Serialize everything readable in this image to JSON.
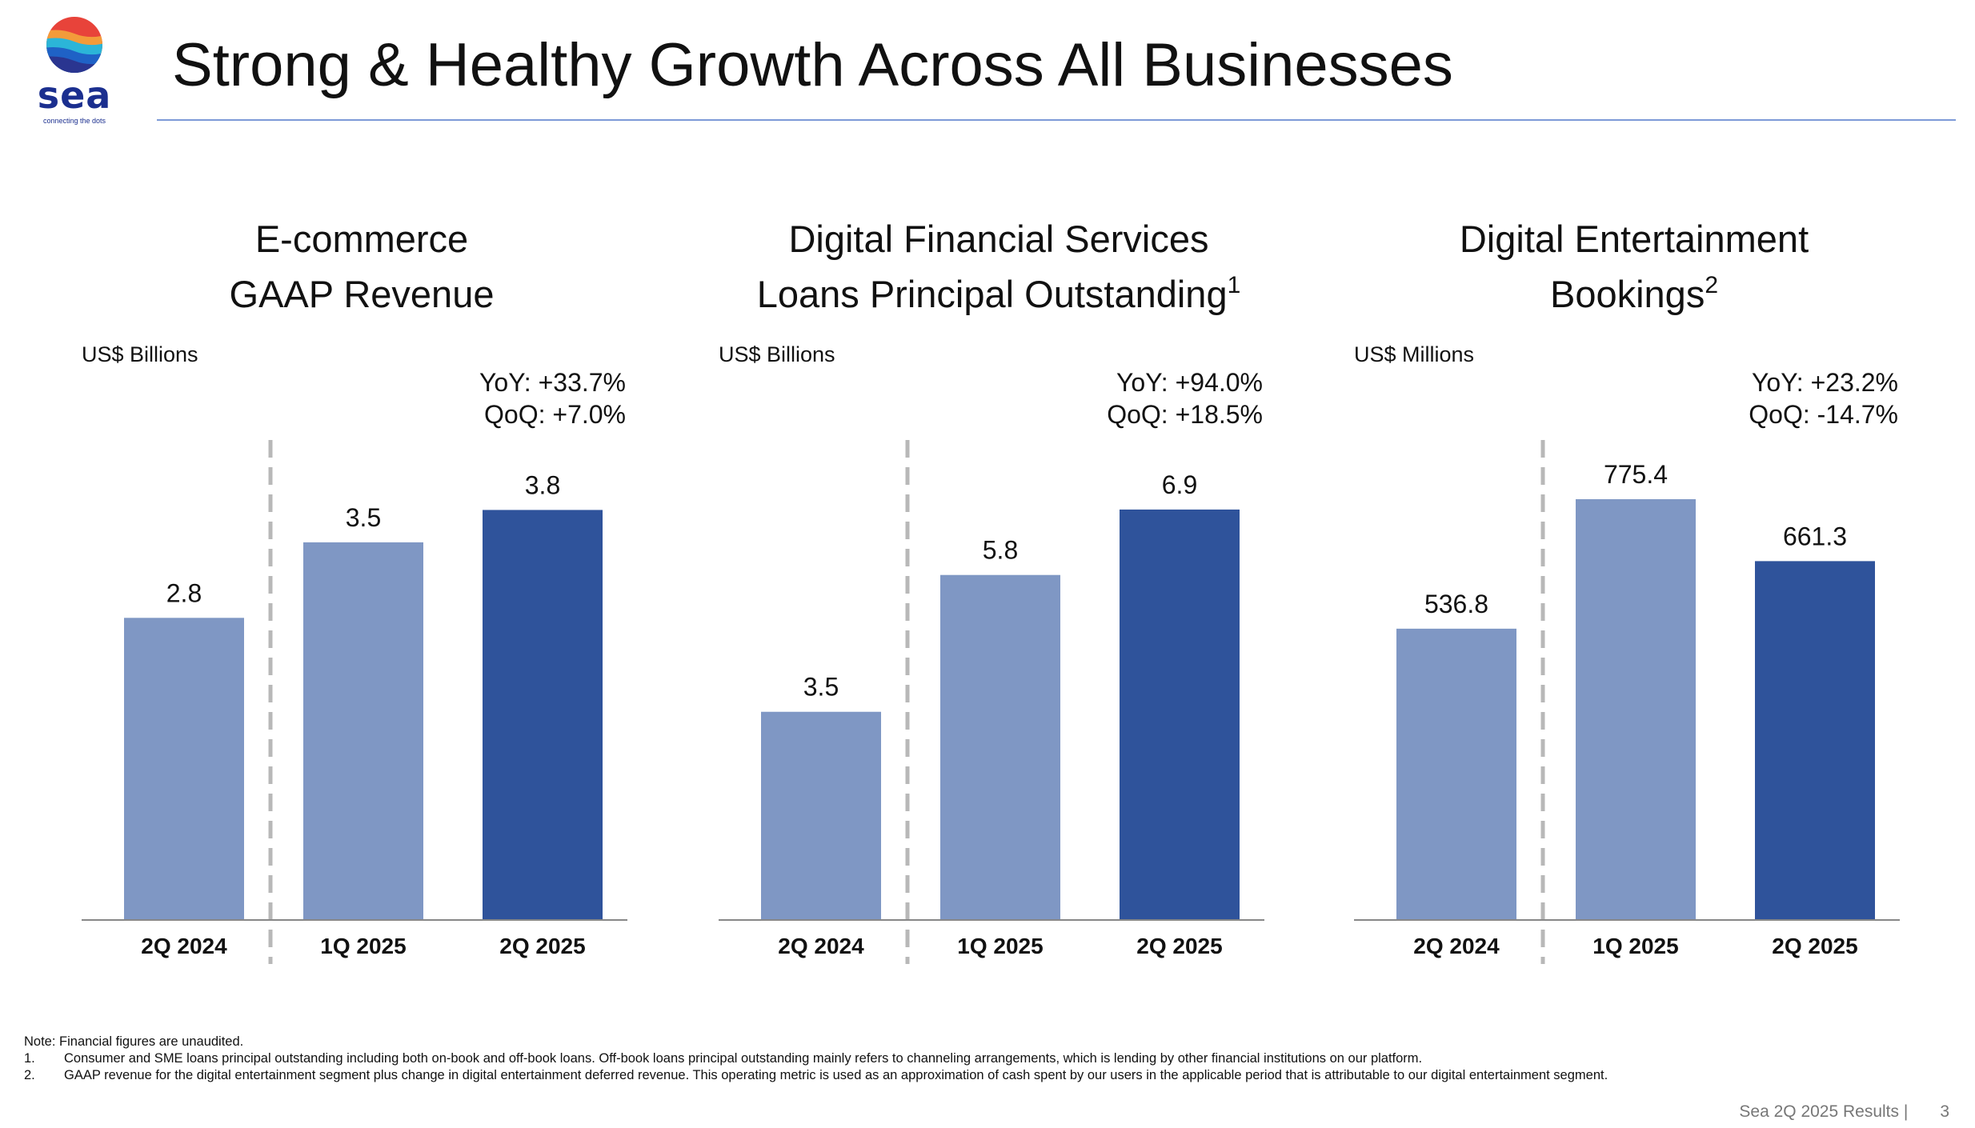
{
  "header": {
    "title": "Strong & Healthy Growth Across All Businesses",
    "logo_text": "sea",
    "logo_tagline": "connecting the dots"
  },
  "colors": {
    "bar_light": "#7f97c4",
    "bar_dark": "#2f539b",
    "divider": "#b8b8b8",
    "axis": "#888888",
    "title_rule": "#7d9ad8"
  },
  "chart_data": [
    {
      "type": "bar",
      "title_lines": [
        "E-commerce",
        "GAAP Revenue"
      ],
      "title_sup": "",
      "unit": "US$ Billions",
      "growth": {
        "yoy": "YoY: +33.7%",
        "qoq": "QoQ: +7.0%"
      },
      "categories": [
        "2Q 2024",
        "1Q 2025",
        "2Q 2025"
      ],
      "values": [
        2.8,
        3.5,
        3.8
      ],
      "value_labels": [
        "2.8",
        "3.5",
        "3.8"
      ],
      "highlight_index": 2,
      "ylim": [
        0,
        4.3
      ]
    },
    {
      "type": "bar",
      "title_lines": [
        "Digital Financial Services",
        "Loans Principal Outstanding"
      ],
      "title_sup": "1",
      "unit": "US$ Billions",
      "growth": {
        "yoy": "YoY: +94.0%",
        "qoq": "QoQ: +18.5%"
      },
      "categories": [
        "2Q 2024",
        "1Q 2025",
        "2Q 2025"
      ],
      "values": [
        3.5,
        5.8,
        6.9
      ],
      "value_labels": [
        "3.5",
        "5.8",
        "6.9"
      ],
      "highlight_index": 2,
      "ylim": [
        0,
        7.8
      ]
    },
    {
      "type": "bar",
      "title_lines": [
        "Digital Entertainment",
        "Bookings"
      ],
      "title_sup": "2",
      "unit": "US$ Millions",
      "growth": {
        "yoy": "YoY: +23.2%",
        "qoq": "QoQ: -14.7%"
      },
      "categories": [
        "2Q 2024",
        "1Q 2025",
        "2Q 2025"
      ],
      "values": [
        536.8,
        775.4,
        661.3
      ],
      "value_labels": [
        "536.8",
        "775.4",
        "661.3"
      ],
      "highlight_index": 2,
      "ylim": [
        0,
        855
      ]
    }
  ],
  "notes": {
    "intro": "Note: Financial figures are unaudited.",
    "items": [
      {
        "num": "1.",
        "text": "Consumer and SME loans principal outstanding including both on-book and off-book loans. Off-book loans principal outstanding mainly refers to channeling arrangements, which is lending by other financial institutions on our platform."
      },
      {
        "num": "2.",
        "text": "GAAP revenue for the digital entertainment segment plus change in digital entertainment deferred revenue. This operating metric is used as an approximation of cash spent by our users in the applicable period that is attributable to our digital entertainment segment."
      }
    ]
  },
  "footer": {
    "text": "Sea 2Q 2025 Results |",
    "page": "3"
  }
}
